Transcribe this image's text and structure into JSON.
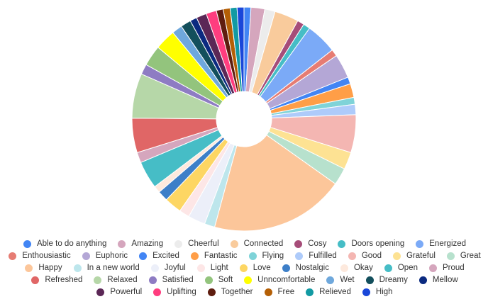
{
  "chart_data": {
    "type": "pie",
    "donut": true,
    "title": "",
    "legend_position": "bottom",
    "slices": [
      {
        "label": "Able to do anything",
        "value": 2,
        "color": "#4285f4"
      },
      {
        "label": "Amazing",
        "value": 4,
        "color": "#d5a6bd"
      },
      {
        "label": "Cheerful",
        "value": 3,
        "color": "#ececec"
      },
      {
        "label": "Connected",
        "value": 7,
        "color": "#f9cb9c"
      },
      {
        "label": "Cosy",
        "value": 2,
        "color": "#a64d79"
      },
      {
        "label": "Doors opening",
        "value": 2,
        "color": "#46bdc6"
      },
      {
        "label": "Energized",
        "value": 9,
        "color": "#7baaf7"
      },
      {
        "label": "Enthousiastic",
        "value": 2,
        "color": "#e67c73"
      },
      {
        "label": "Euphoric",
        "value": 7,
        "color": "#b4a7d6"
      },
      {
        "label": "Excited",
        "value": 2,
        "color": "#4285f4"
      },
      {
        "label": "Fantastic",
        "value": 4,
        "color": "#ff9e47"
      },
      {
        "label": "Flying",
        "value": 2,
        "color": "#7fd3d8"
      },
      {
        "label": "Fulfilled",
        "value": 3,
        "color": "#aecbfa"
      },
      {
        "label": "Good",
        "value": 11,
        "color": "#f4b6b2"
      },
      {
        "label": "Grateful",
        "value": 5,
        "color": "#fde293"
      },
      {
        "label": "Great",
        "value": 5,
        "color": "#b7e1cd"
      },
      {
        "label": "Happy",
        "value": 39,
        "color": "#fcc69a"
      },
      {
        "label": "In a new world",
        "value": 3,
        "color": "#bde6ec"
      },
      {
        "label": "Joyful",
        "value": 5,
        "color": "#eceff9"
      },
      {
        "label": "Light",
        "value": 3,
        "color": "#fde6e6"
      },
      {
        "label": "Love",
        "value": 5,
        "color": "#fdd663"
      },
      {
        "label": "Nostalgic",
        "value": 3,
        "color": "#3d7fc8"
      },
      {
        "label": "Okay",
        "value": 2,
        "color": "#fde9dd"
      },
      {
        "label": "Open",
        "value": 8,
        "color": "#46bdc6"
      },
      {
        "label": "Proud",
        "value": 3,
        "color": "#d5a6bd"
      },
      {
        "label": "Refreshed",
        "value": 10,
        "color": "#e06666"
      },
      {
        "label": "Relaxed",
        "value": 13,
        "color": "#b6d7a8"
      },
      {
        "label": "Satisfied",
        "value": 3,
        "color": "#8e7cc3"
      },
      {
        "label": "Soft",
        "value": 6,
        "color": "#93c47d"
      },
      {
        "label": "Unncomfortable",
        "value": 6,
        "color": "#ffff00"
      },
      {
        "label": "Wet",
        "value": 3,
        "color": "#6fa8dc"
      },
      {
        "label": "Dreamy",
        "value": 3,
        "color": "#134f5c"
      },
      {
        "label": "Mellow",
        "value": 2,
        "color": "#0b2a80"
      },
      {
        "label": "Powerful",
        "value": 3,
        "color": "#5b2756"
      },
      {
        "label": "Uplifting",
        "value": 3,
        "color": "#ff3d7f"
      },
      {
        "label": "Together",
        "value": 2,
        "color": "#5e1d0f"
      },
      {
        "label": "Free",
        "value": 2,
        "color": "#b45f06"
      },
      {
        "label": "Relieved",
        "value": 2,
        "color": "#129aa3"
      },
      {
        "label": "High",
        "value": 2,
        "color": "#1a47d9"
      }
    ]
  }
}
